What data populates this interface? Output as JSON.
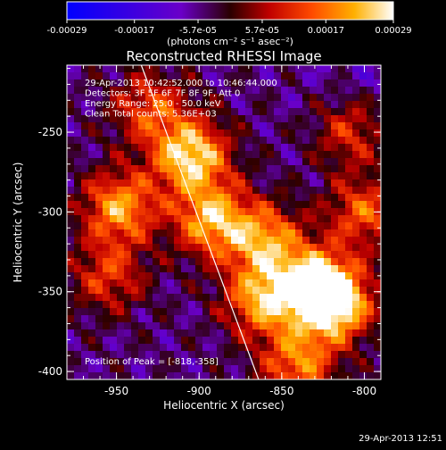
{
  "chart_data": {
    "type": "heatmap",
    "title": "Reconstructed RHESSI Image",
    "xlabel": "Heliocentric X (arcsec)",
    "ylabel": "Heliocentric Y (arcsec)",
    "xlim": [
      -980,
      -790
    ],
    "ylim": [
      -405,
      -208
    ],
    "x_ticks": [
      -950,
      -900,
      -850,
      -800
    ],
    "x_tick_labels": [
      "-950",
      "-900",
      "-850",
      "-800"
    ],
    "y_ticks": [
      -250,
      -300,
      -350,
      -400
    ],
    "y_tick_labels": [
      "-250",
      "-300",
      "-350",
      "-400"
    ],
    "colorbar": {
      "range": [
        -0.00029,
        0.00029
      ],
      "ticks": [
        -0.00029,
        -0.00017,
        -5.7e-05,
        5.7e-05,
        0.00017,
        0.00029
      ],
      "tick_labels": [
        "-0.00029",
        "-0.00017",
        "-5.7e-05",
        "5.7e-05",
        "0.00017",
        "0.00029"
      ],
      "unit_label": "(photons cm⁻² s⁻¹ asec⁻²)"
    },
    "annotations": [
      "29-Apr-2013 10:42:52.000 to 10:46:44.000",
      "Detectors: 3F 5F 6F 7F 8F 9F, Att 0",
      "Energy Range: 25.0 - 50.0 keV",
      "Clean     Total counts: 5.36E+03"
    ],
    "peak_label": "Position of Peak = [-818,-358]",
    "peak": [
      -818,
      -358
    ],
    "grid": false,
    "limb_line": [
      [
        -935,
        -208
      ],
      [
        -864,
        -405
      ]
    ],
    "bright_sources": [
      {
        "x": -905,
        "y": -265,
        "level": 1.0
      },
      {
        "x": -948,
        "y": -297,
        "level": 0.8
      },
      {
        "x": -892,
        "y": -305,
        "level": 0.85
      },
      {
        "x": -860,
        "y": -318,
        "level": 0.75
      },
      {
        "x": -862,
        "y": -355,
        "level": 0.8
      },
      {
        "x": -830,
        "y": -345,
        "level": 0.9
      },
      {
        "x": -818,
        "y": -358,
        "level": 1.0
      },
      {
        "x": -840,
        "y": -395,
        "level": 0.7
      },
      {
        "x": -955,
        "y": -340,
        "level": 0.5
      },
      {
        "x": -930,
        "y": -235,
        "level": 0.55
      },
      {
        "x": -800,
        "y": -300,
        "level": 0.6
      },
      {
        "x": -808,
        "y": -250,
        "level": 0.5
      }
    ]
  },
  "footer": {
    "timestamp": "29-Apr-2013 12:51"
  }
}
